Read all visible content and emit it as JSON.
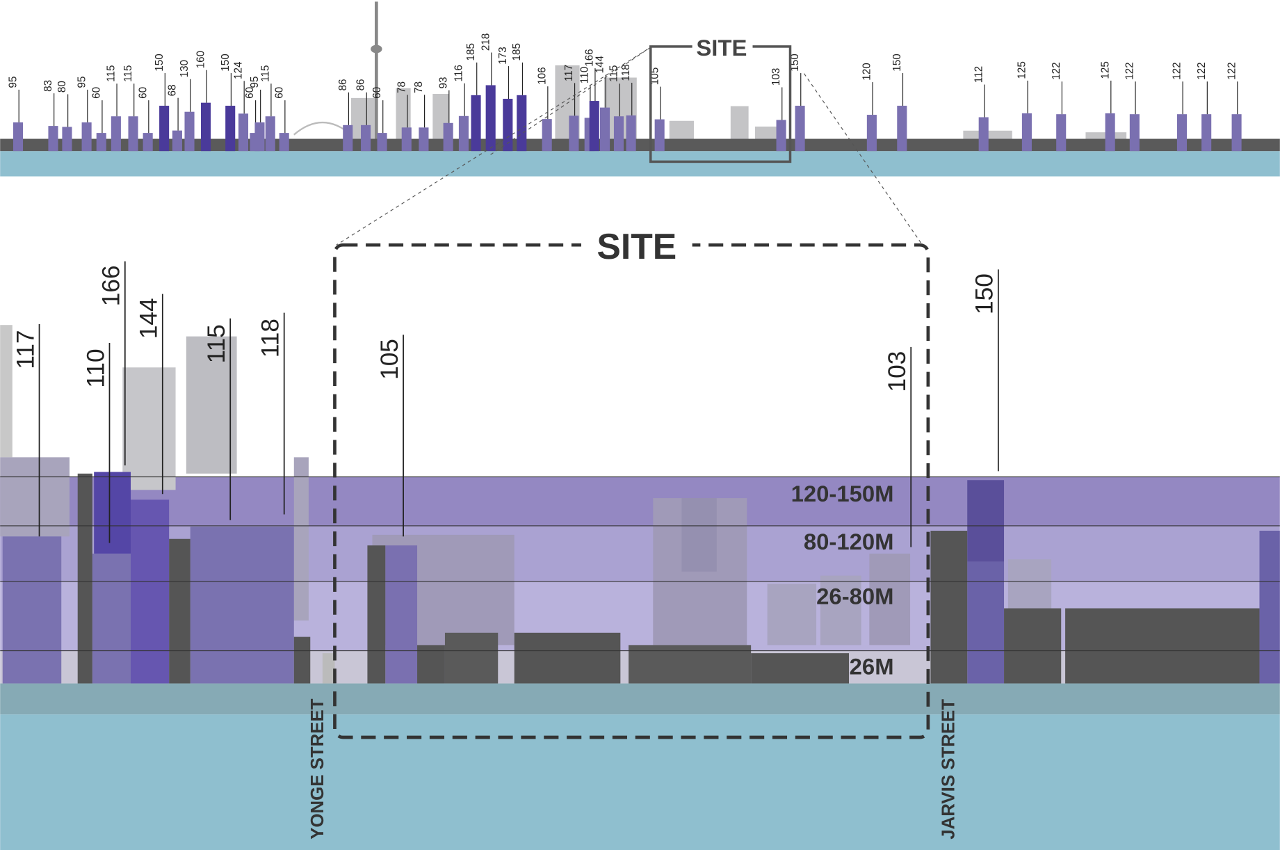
{
  "overview": {
    "site_label": "SITE",
    "height_labels": [
      95,
      83,
      80,
      95,
      60,
      115,
      115,
      60,
      150,
      68,
      130,
      160,
      150,
      124,
      60,
      95,
      115,
      60,
      86,
      86,
      60,
      78,
      78,
      93,
      116,
      185,
      218,
      173,
      185,
      106,
      117,
      110,
      166,
      144,
      115,
      118,
      105,
      103,
      150,
      120,
      150,
      112,
      125,
      122,
      125,
      122,
      122,
      122,
      122
    ]
  },
  "detail": {
    "site_label": "SITE",
    "height_labels": [
      117,
      110,
      166,
      144,
      115,
      118,
      105,
      103,
      150
    ],
    "zones": [
      "120-150M",
      "80-120M",
      "26-80M",
      "26M"
    ],
    "streets": [
      "YONGE STREET",
      "JARVIS STREET"
    ]
  }
}
